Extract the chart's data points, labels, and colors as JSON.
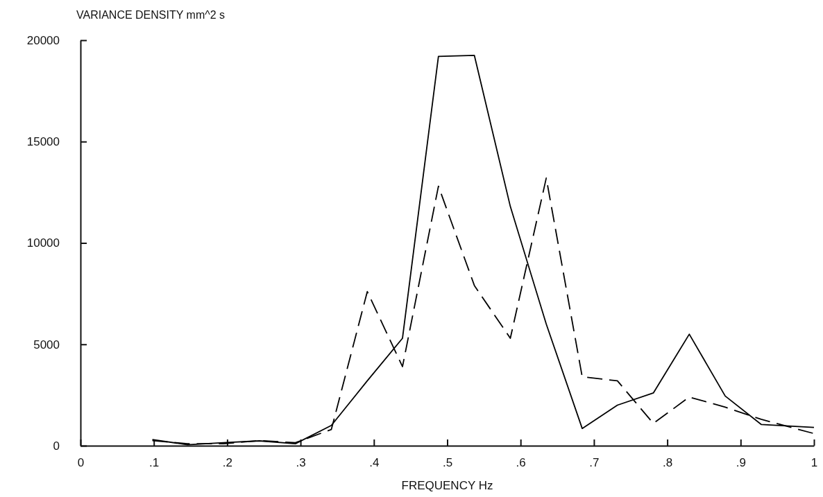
{
  "chart_data": {
    "type": "line",
    "ylabel": "VARIANCE DENSITY  mm^2 s",
    "xlabel": "FREQUENCY  Hz",
    "xlim": [
      0,
      1
    ],
    "ylim": [
      0,
      20000
    ],
    "xticks": [
      0,
      {
        "value": 0.1,
        "label": ".1"
      },
      {
        "value": 0.2,
        "label": ".2"
      },
      {
        "value": 0.3,
        "label": ".3"
      },
      {
        "value": 0.4,
        "label": ".4"
      },
      {
        "value": 0.5,
        "label": ".5"
      },
      {
        "value": 0.6,
        "label": ".6"
      },
      {
        "value": 0.7,
        "label": ".7"
      },
      {
        "value": 0.8,
        "label": ".8"
      },
      {
        "value": 0.9,
        "label": ".9"
      },
      1
    ],
    "yticks": [
      0,
      5000,
      10000,
      15000,
      20000
    ],
    "x": [
      0.098,
      0.146,
      0.195,
      0.244,
      0.293,
      0.342,
      0.391,
      0.439,
      0.488,
      0.537,
      0.586,
      0.635,
      0.684,
      0.732,
      0.781,
      0.83,
      0.879,
      0.928,
      1.0
    ],
    "series": [
      {
        "color": "#000000",
        "line_style": "solid",
        "values": [
          300,
          50,
          150,
          240,
          100,
          1000,
          3200,
          5300,
          19200,
          19250,
          11800,
          6000,
          850,
          2000,
          2600,
          5500,
          2450,
          1050,
          900
        ]
      },
      {
        "color": "#000000",
        "line_style": "dashed",
        "values": [
          250,
          100,
          100,
          250,
          150,
          800,
          7600,
          3900,
          12800,
          7900,
          5300,
          13200,
          3400,
          3200,
          1100,
          2400,
          1900,
          1300,
          600
        ]
      }
    ],
    "grid": false,
    "marker": "none"
  }
}
